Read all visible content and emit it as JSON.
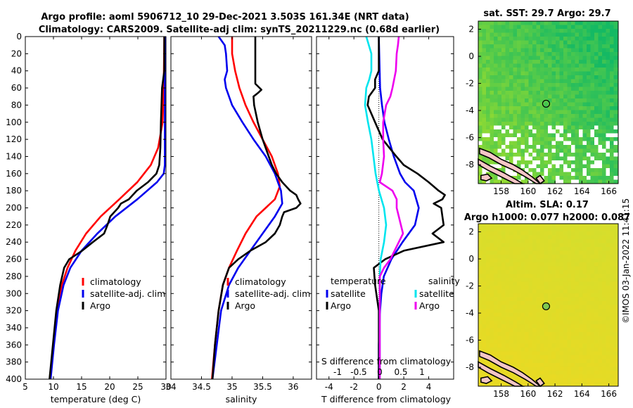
{
  "titles": {
    "line1": "Argo profile: aoml 5906712_10 29-Dec-2021 3.503S 161.34E (NRT data)",
    "line2": "Climatology: CARS2009. Satellite-adj clim: synTS_20211229.nc (0.68d earlier)"
  },
  "watermark": "©IMOS 03-Jan-2022 11:41:15",
  "colors": {
    "red": "#ff0000",
    "blue": "#0000ee",
    "black": "#000000",
    "cyan": "#00e5ee",
    "magenta": "#ee00ee"
  },
  "depth_axis": {
    "ylim": [
      0,
      400
    ],
    "ticks": [
      "0",
      "20",
      "40",
      "60",
      "80",
      "100",
      "120",
      "140",
      "160",
      "180",
      "200",
      "220",
      "240",
      "260",
      "280",
      "300",
      "320",
      "340",
      "360",
      "380",
      "400"
    ]
  },
  "chart_data": [
    {
      "type": "line",
      "id": "temperature",
      "xlabel": "temperature (deg C)",
      "xlim": [
        5,
        30
      ],
      "xticks": [
        "5",
        "10",
        "15",
        "20",
        "25",
        "30"
      ],
      "legend": [
        "climatology",
        "satellite-adj. clim",
        "Argo"
      ],
      "series": [
        {
          "name": "climatology",
          "color": "red",
          "depth": [
            0,
            60,
            100,
            130,
            150,
            170,
            190,
            210,
            230,
            250,
            270,
            290,
            320,
            360,
            400
          ],
          "values": [
            29.7,
            29.6,
            29.4,
            28.6,
            27.3,
            24.9,
            21.7,
            18.4,
            15.8,
            13.9,
            12.5,
            11.5,
            10.7,
            10.0,
            9.4
          ]
        },
        {
          "name": "satellite-adj. clim",
          "color": "blue",
          "depth": [
            0,
            60,
            100,
            130,
            150,
            160,
            170,
            190,
            210,
            230,
            250,
            270,
            290,
            320,
            360,
            400
          ],
          "values": [
            29.8,
            29.8,
            29.8,
            29.8,
            29.8,
            29.6,
            28.4,
            24.9,
            21.0,
            17.8,
            15.0,
            13.0,
            11.8,
            10.8,
            10.1,
            9.5
          ]
        },
        {
          "name": "Argo",
          "color": "black",
          "depth": [
            0,
            40,
            50,
            60,
            80,
            100,
            130,
            150,
            160,
            170,
            180,
            190,
            195,
            200,
            210,
            220,
            230,
            240,
            250,
            260,
            270,
            290,
            320,
            360,
            400
          ],
          "values": [
            29.7,
            29.7,
            29.5,
            29.3,
            29.2,
            29.1,
            29.0,
            28.8,
            28.3,
            26.8,
            24.8,
            23.4,
            22.0,
            21.5,
            20.1,
            19.6,
            19.0,
            17.0,
            15.1,
            12.8,
            11.9,
            11.2,
            10.5,
            9.9,
            9.3
          ]
        }
      ]
    },
    {
      "type": "line",
      "id": "salinity",
      "xlabel": "salinity",
      "xlim": [
        34,
        36.3
      ],
      "xticks": [
        "34",
        "34.5",
        "35",
        "35.5",
        "36"
      ],
      "legend": [
        "climatology",
        "satellite-adj. clim",
        "Argo"
      ],
      "series": [
        {
          "name": "climatology",
          "color": "red",
          "depth": [
            0,
            20,
            40,
            60,
            80,
            100,
            120,
            140,
            160,
            175,
            190,
            200,
            210,
            230,
            250,
            270,
            290,
            320,
            360,
            400
          ],
          "values": [
            35.0,
            35.0,
            35.05,
            35.12,
            35.22,
            35.35,
            35.5,
            35.65,
            35.75,
            35.78,
            35.7,
            35.55,
            35.4,
            35.22,
            35.08,
            34.95,
            34.85,
            34.78,
            34.72,
            34.67
          ]
        },
        {
          "name": "satellite-adj. clim",
          "color": "blue",
          "depth": [
            0,
            10,
            20,
            40,
            50,
            60,
            80,
            100,
            120,
            140,
            160,
            180,
            195,
            210,
            230,
            250,
            270,
            290,
            320,
            360,
            400
          ],
          "values": [
            34.78,
            34.88,
            34.9,
            34.92,
            34.88,
            34.9,
            35.0,
            35.17,
            35.35,
            35.55,
            35.7,
            35.8,
            35.82,
            35.7,
            35.5,
            35.3,
            35.1,
            34.95,
            34.82,
            34.75,
            34.68
          ]
        },
        {
          "name": "Argo",
          "color": "black",
          "depth": [
            0,
            20,
            40,
            55,
            60,
            62,
            66,
            70,
            80,
            100,
            120,
            140,
            150,
            160,
            170,
            180,
            185,
            190,
            195,
            200,
            205,
            210,
            220,
            230,
            240,
            250,
            260,
            270,
            290,
            320,
            360,
            400
          ],
          "values": [
            35.38,
            35.38,
            35.38,
            35.38,
            35.45,
            35.48,
            35.42,
            35.35,
            35.36,
            35.42,
            35.5,
            35.6,
            35.65,
            35.72,
            35.82,
            35.95,
            36.05,
            36.08,
            36.12,
            36.05,
            35.85,
            35.82,
            35.78,
            35.7,
            35.55,
            35.3,
            35.1,
            34.95,
            34.85,
            34.78,
            34.72,
            34.68
          ]
        }
      ]
    },
    {
      "type": "line",
      "id": "difference",
      "xlabel": "T difference from climatology",
      "xlabel_top": "S difference from climatology",
      "xlim": [
        -5,
        6
      ],
      "xticks": [
        "-4",
        "-2",
        "0",
        "2",
        "4"
      ],
      "sxlim": [
        -1.5,
        1.75
      ],
      "sxticks": [
        "-1",
        "-0.5",
        "0",
        "0.5",
        "1"
      ],
      "legend_title_t": "temperature",
      "legend_title_s": "salinity",
      "legend_t": [
        "satellite",
        "Argo"
      ],
      "legend_s": [
        "satellite",
        "Argo"
      ],
      "series": [
        {
          "name": "T satellite",
          "color": "blue",
          "depth": [
            0,
            60,
            80,
            100,
            120,
            140,
            160,
            170,
            180,
            200,
            220,
            240,
            260,
            280,
            300,
            320,
            360,
            400
          ],
          "values": [
            0.0,
            0.1,
            0.25,
            0.45,
            0.8,
            1.2,
            1.7,
            2.1,
            2.8,
            3.2,
            2.9,
            1.9,
            1.0,
            0.4,
            0.2,
            0.1,
            0.0,
            0.0
          ]
        },
        {
          "name": "T Argo",
          "color": "black",
          "depth": [
            0,
            40,
            50,
            60,
            70,
            80,
            100,
            120,
            140,
            150,
            160,
            170,
            180,
            185,
            190,
            195,
            200,
            210,
            220,
            230,
            240,
            250,
            260,
            270,
            290,
            320,
            360,
            400
          ],
          "values": [
            0.0,
            0.0,
            -0.3,
            -0.3,
            -0.8,
            -0.9,
            -0.3,
            0.3,
            1.4,
            2.0,
            3.1,
            4.0,
            4.8,
            5.3,
            5.1,
            4.4,
            5.0,
            5.1,
            5.2,
            4.3,
            5.2,
            2.0,
            0.5,
            -0.4,
            -0.3,
            0.0,
            0.0,
            0.0
          ]
        },
        {
          "name": "S satellite",
          "color": "cyan",
          "depth": [
            0,
            20,
            40,
            50,
            60,
            80,
            100,
            120,
            140,
            160,
            180,
            200,
            220,
            240,
            260,
            280,
            300,
            320,
            360,
            400
          ],
          "values": [
            -0.32,
            -0.2,
            -0.2,
            -0.25,
            -0.32,
            -0.35,
            -0.28,
            -0.2,
            -0.15,
            -0.1,
            -0.02,
            0.1,
            0.15,
            0.1,
            0.02,
            0.0,
            0.0,
            0.0,
            0.0,
            0.0
          ]
        },
        {
          "name": "S Argo",
          "color": "magenta",
          "depth": [
            0,
            10,
            20,
            40,
            60,
            70,
            80,
            100,
            120,
            140,
            160,
            170,
            180,
            190,
            200,
            210,
            220,
            230,
            240,
            250,
            260,
            270,
            280,
            300,
            320,
            360,
            400
          ],
          "values": [
            0.45,
            0.43,
            0.4,
            0.38,
            0.3,
            0.25,
            0.15,
            0.08,
            0.08,
            0.1,
            0.05,
            0.0,
            0.3,
            0.4,
            0.4,
            0.45,
            0.5,
            0.55,
            0.45,
            0.35,
            0.25,
            0.1,
            0.0,
            0.0,
            0.0,
            0.0,
            0.0
          ]
        }
      ]
    }
  ],
  "maps": [
    {
      "id": "sst",
      "title": "sat. SST: 29.7 Argo: 29.7",
      "lon_ticks": [
        "158",
        "160",
        "162",
        "164",
        "166"
      ],
      "lat_ticks": [
        "2",
        "0",
        "-2",
        "-4",
        "-6",
        "-8"
      ],
      "float_lon": 161.34,
      "float_lat": -3.5
    },
    {
      "id": "sla",
      "title1": "Altim. SLA: 0.17",
      "title2": "Argo h1000: 0.077 h2000: 0.087",
      "lon_ticks": [
        "158",
        "160",
        "162",
        "164",
        "166"
      ],
      "lat_ticks": [
        "2",
        "0",
        "-2",
        "-4",
        "-6",
        "-8"
      ],
      "float_lon": 161.34,
      "float_lat": -3.5
    }
  ]
}
